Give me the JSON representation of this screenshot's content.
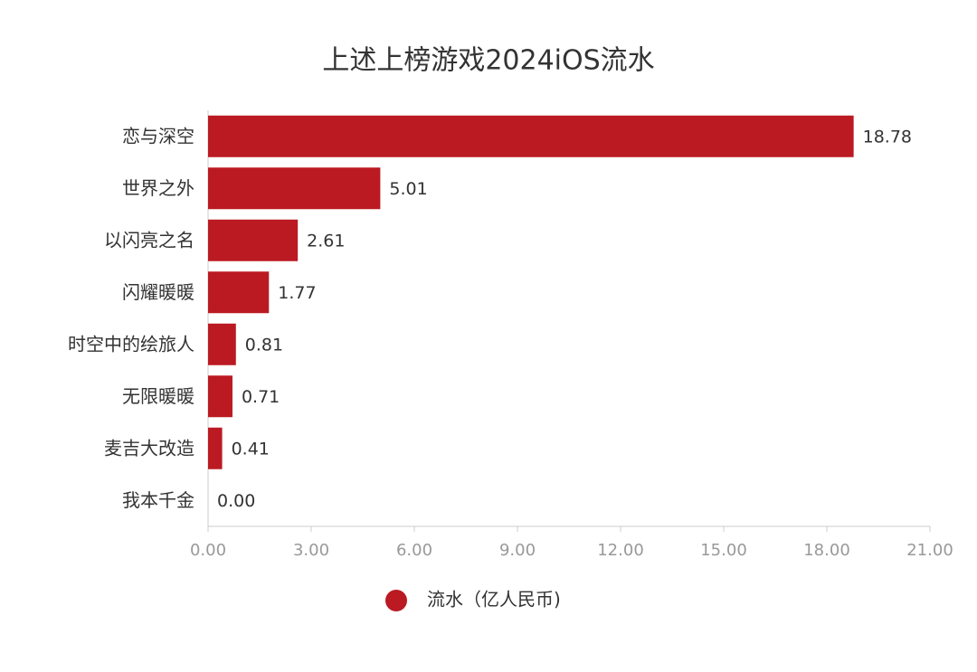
{
  "chart_data": {
    "type": "bar",
    "orientation": "horizontal",
    "title": "上述上榜游戏2024iOS流水",
    "categories": [
      "恋与深空",
      "世界之外",
      "以闪亮之名",
      "闪耀暖暖",
      "时空中的绘旅人",
      "无限暖暖",
      "麦吉大改造",
      "我本千金"
    ],
    "series": [
      {
        "name": "流水（亿人民币)",
        "color": "#bb1a22",
        "values": [
          18.78,
          5.01,
          2.61,
          1.77,
          0.81,
          0.71,
          0.41,
          0
        ],
        "value_labels": [
          "18.78",
          "5.01",
          "2.61",
          "1.77",
          "0.81",
          "0.71",
          "0.41",
          "0.00"
        ]
      }
    ],
    "xlim": [
      0,
      21
    ],
    "xticks": [
      {
        "value": 0,
        "label": "0.00"
      },
      {
        "value": 3,
        "label": "3.00"
      },
      {
        "value": 6,
        "label": "6.00"
      },
      {
        "value": 9,
        "label": "9.00"
      },
      {
        "value": 12,
        "label": "12.00"
      },
      {
        "value": 15,
        "label": "15.00"
      },
      {
        "value": 18,
        "label": "18.00"
      },
      {
        "value": 21,
        "label": "21.00"
      }
    ],
    "legend": "bottom"
  }
}
